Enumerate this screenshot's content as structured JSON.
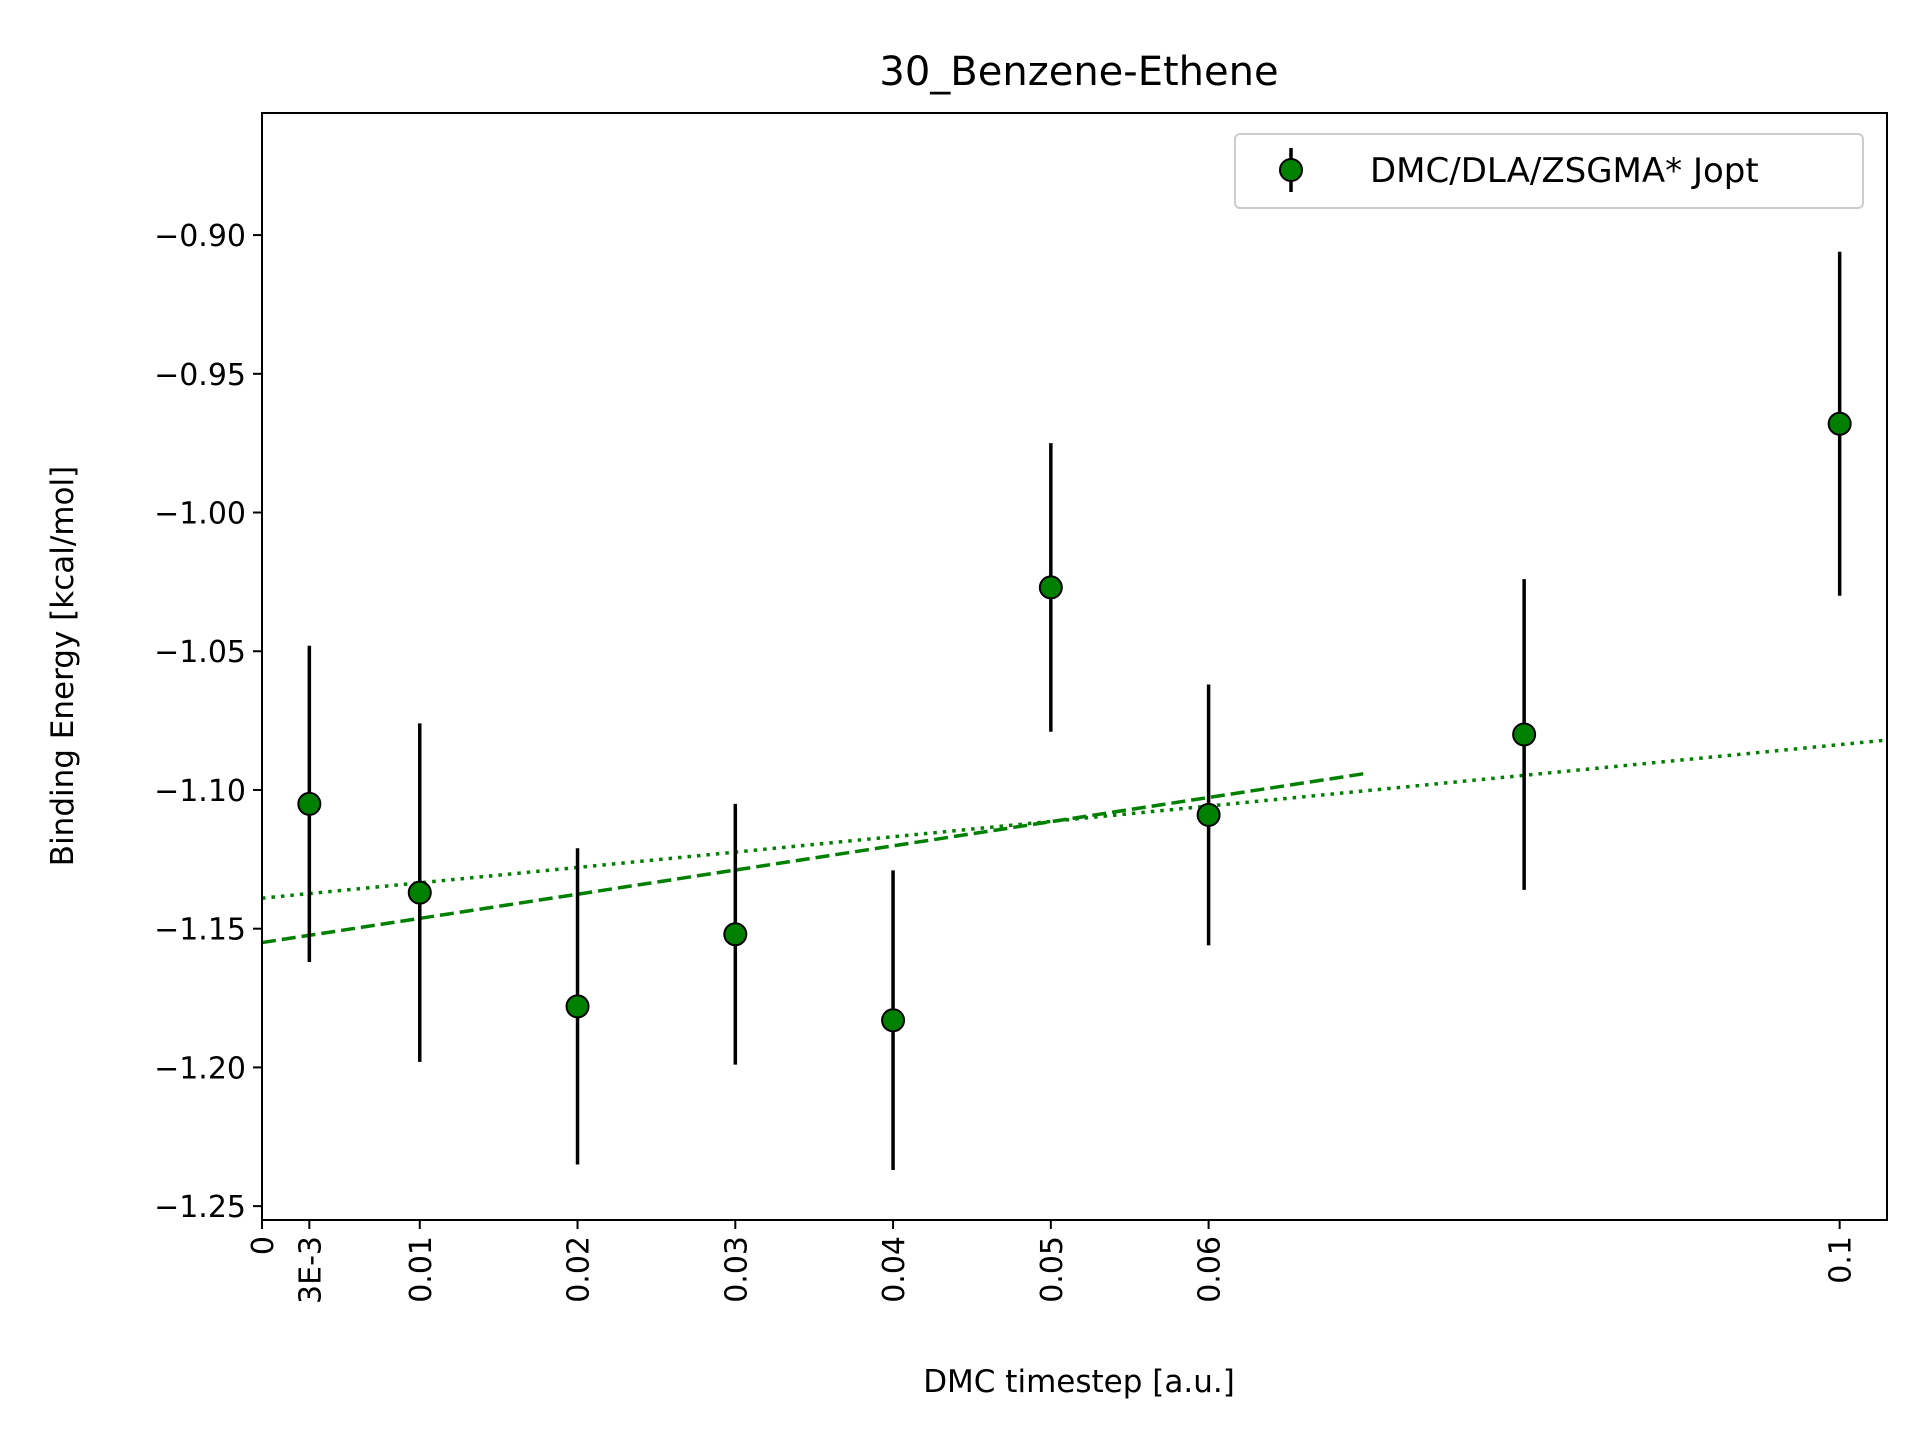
{
  "chart_data": {
    "type": "scatter",
    "title": "30_Benzene-Ethene",
    "xlabel": "DMC timestep [a.u.]",
    "ylabel": "Binding Energy [kcal/mol]",
    "xlim": [
      0,
      0.103
    ],
    "ylim": [
      -1.255,
      -0.856
    ],
    "x_ticks": [
      {
        "value": 0,
        "label": "0"
      },
      {
        "value": 0.003,
        "label": "3E-3"
      },
      {
        "value": 0.01,
        "label": "0.01"
      },
      {
        "value": 0.02,
        "label": "0.02"
      },
      {
        "value": 0.03,
        "label": "0.03"
      },
      {
        "value": 0.04,
        "label": "0.04"
      },
      {
        "value": 0.05,
        "label": "0.05"
      },
      {
        "value": 0.06,
        "label": "0.06"
      },
      {
        "value": 0.1,
        "label": "0.1"
      }
    ],
    "y_ticks": [
      {
        "value": -0.9,
        "label": "−0.90"
      },
      {
        "value": -0.95,
        "label": "−0.95"
      },
      {
        "value": -1.0,
        "label": "−1.00"
      },
      {
        "value": -1.05,
        "label": "−1.05"
      },
      {
        "value": -1.1,
        "label": "−1.10"
      },
      {
        "value": -1.15,
        "label": "−1.15"
      },
      {
        "value": -1.2,
        "label": "−1.20"
      },
      {
        "value": -1.25,
        "label": "−1.25"
      }
    ],
    "grid": false,
    "legend_position": "top-right",
    "series": [
      {
        "name": "DMC/DLA/ZSGMA* Jopt",
        "color": "#008000",
        "marker": "circle",
        "x": [
          0.003,
          0.01,
          0.02,
          0.03,
          0.04,
          0.05,
          0.06,
          0.08,
          0.1
        ],
        "y": [
          -1.105,
          -1.137,
          -1.178,
          -1.152,
          -1.183,
          -1.027,
          -1.109,
          -1.08,
          -0.968
        ],
        "yerr": [
          0.057,
          0.061,
          0.057,
          0.047,
          0.054,
          0.052,
          0.047,
          0.056,
          0.062
        ]
      }
    ],
    "fits": [
      {
        "style": "dashed",
        "color": "#008000",
        "x": [
          0,
          0.07
        ],
        "y": [
          -1.155,
          -1.094
        ]
      },
      {
        "style": "dotted",
        "color": "#008000",
        "x": [
          0,
          0.103
        ],
        "y": [
          -1.139,
          -1.082
        ]
      }
    ]
  }
}
